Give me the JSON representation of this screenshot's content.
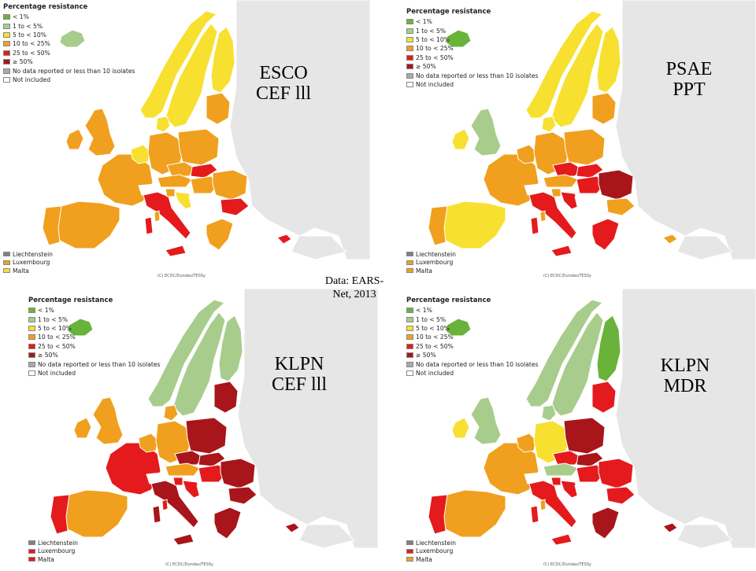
{
  "legend": {
    "title": "Percentage resistance",
    "items": [
      {
        "label": "< 1%",
        "color": "#6ab33a"
      },
      {
        "label": "1 to < 5%",
        "color": "#a8cc8c"
      },
      {
        "label": "5 to < 10%",
        "color": "#f7e030"
      },
      {
        "label": "10 to < 25%",
        "color": "#f0a01e"
      },
      {
        "label": "25 to < 50%",
        "color": "#e41a1c"
      },
      {
        "label": "≥ 50%",
        "color": "#a8151a"
      },
      {
        "label": "No data reported or less than 10 isolates",
        "color": "#a9a9a9"
      },
      {
        "label": "Not included",
        "color": "#ffffff"
      }
    ]
  },
  "source_note": "Data: EARS-Net, 2013",
  "credit": "(C) ECDC/Dundas/TESSy",
  "panels": [
    {
      "id": "esco",
      "title_line1": "ESCO",
      "title_line2": "CEF lll",
      "small_legend": [
        {
          "label": "Liechtenstein",
          "color": "#808080"
        },
        {
          "label": "Luxembourg",
          "color": "#f0a01e"
        },
        {
          "label": "Malta",
          "color": "#f7e030"
        }
      ],
      "country_colors": {
        "iceland": "#a8cc8c",
        "norway": "#f7e030",
        "sweden": "#f7e030",
        "finland": "#f7e030",
        "uk": "#f0a01e",
        "ireland": "#f0a01e",
        "france": "#f0a01e",
        "spain": "#f0a01e",
        "portugal": "#f0a01e",
        "benelux": "#f7e030",
        "germany": "#f0a01e",
        "denmark": "#f7e030",
        "poland": "#f0a01e",
        "czech": "#f0a01e",
        "slovakia": "#e41a1c",
        "austria": "#f0a01e",
        "switzerland": "#ffffff",
        "hungary": "#f0a01e",
        "romania": "#f0a01e",
        "bulgaria": "#e41a1c",
        "italy": "#e41a1c",
        "slovenia": "#f0a01e",
        "croatia": "#f7e030",
        "greece": "#f0a01e",
        "baltics": "#f0a01e",
        "cyprus": "#e41a1c",
        "balkans": "#ffffff"
      }
    },
    {
      "id": "psae",
      "title_line1": "PSAE",
      "title_line2": "PPT",
      "small_legend": [
        {
          "label": "Liechtenstein",
          "color": "#808080"
        },
        {
          "label": "Luxembourg",
          "color": "#f0a01e"
        },
        {
          "label": "Malta",
          "color": "#f0a01e"
        }
      ],
      "country_colors": {
        "iceland": "#6ab33a",
        "norway": "#f7e030",
        "sweden": "#f7e030",
        "finland": "#f7e030",
        "uk": "#a8cc8c",
        "ireland": "#f7e030",
        "france": "#f0a01e",
        "spain": "#f7e030",
        "portugal": "#f0a01e",
        "benelux": "#f0a01e",
        "germany": "#f0a01e",
        "denmark": "#f7e030",
        "poland": "#f0a01e",
        "czech": "#e41a1c",
        "slovakia": "#e41a1c",
        "austria": "#f0a01e",
        "switzerland": "#ffffff",
        "hungary": "#e41a1c",
        "romania": "#a8151a",
        "bulgaria": "#f0a01e",
        "italy": "#e41a1c",
        "slovenia": "#f0a01e",
        "croatia": "#e41a1c",
        "greece": "#e41a1c",
        "baltics": "#f0a01e",
        "cyprus": "#f0a01e",
        "balkans": "#ffffff"
      }
    },
    {
      "id": "klpn-cef",
      "title_line1": "KLPN",
      "title_line2": "CEF lll",
      "small_legend": [
        {
          "label": "Liechtenstein",
          "color": "#808080"
        },
        {
          "label": "Luxembourg",
          "color": "#e41a1c"
        },
        {
          "label": "Malta",
          "color": "#e41a1c"
        }
      ],
      "country_colors": {
        "iceland": "#6ab33a",
        "norway": "#a8cc8c",
        "sweden": "#a8cc8c",
        "finland": "#a8cc8c",
        "uk": "#f0a01e",
        "ireland": "#f0a01e",
        "france": "#e41a1c",
        "spain": "#f0a01e",
        "portugal": "#e41a1c",
        "benelux": "#f0a01e",
        "germany": "#f0a01e",
        "denmark": "#f0a01e",
        "poland": "#a8151a",
        "czech": "#a8151a",
        "slovakia": "#a8151a",
        "austria": "#f0a01e",
        "switzerland": "#ffffff",
        "hungary": "#e41a1c",
        "romania": "#a8151a",
        "bulgaria": "#a8151a",
        "italy": "#a8151a",
        "slovenia": "#e41a1c",
        "croatia": "#e41a1c",
        "greece": "#a8151a",
        "baltics": "#a8151a",
        "cyprus": "#a8151a",
        "balkans": "#ffffff"
      }
    },
    {
      "id": "klpn-mdr",
      "title_line1": "KLPN",
      "title_line2": "MDR",
      "small_legend": [
        {
          "label": "Liechtenstein",
          "color": "#808080"
        },
        {
          "label": "Luxembourg",
          "color": "#e41a1c"
        },
        {
          "label": "Malta",
          "color": "#f0a01e"
        }
      ],
      "country_colors": {
        "iceland": "#6ab33a",
        "norway": "#a8cc8c",
        "sweden": "#a8cc8c",
        "finland": "#6ab33a",
        "uk": "#a8cc8c",
        "ireland": "#f7e030",
        "france": "#f0a01e",
        "spain": "#f0a01e",
        "portugal": "#e41a1c",
        "benelux": "#f0a01e",
        "germany": "#f7e030",
        "denmark": "#a8cc8c",
        "poland": "#a8151a",
        "czech": "#e41a1c",
        "slovakia": "#a8151a",
        "austria": "#a8cc8c",
        "switzerland": "#ffffff",
        "hungary": "#e41a1c",
        "romania": "#e41a1c",
        "bulgaria": "#e41a1c",
        "italy": "#e41a1c",
        "slovenia": "#e41a1c",
        "croatia": "#e41a1c",
        "greece": "#a8151a",
        "baltics": "#e41a1c",
        "cyprus": "#a8151a",
        "balkans": "#ffffff"
      }
    }
  ]
}
